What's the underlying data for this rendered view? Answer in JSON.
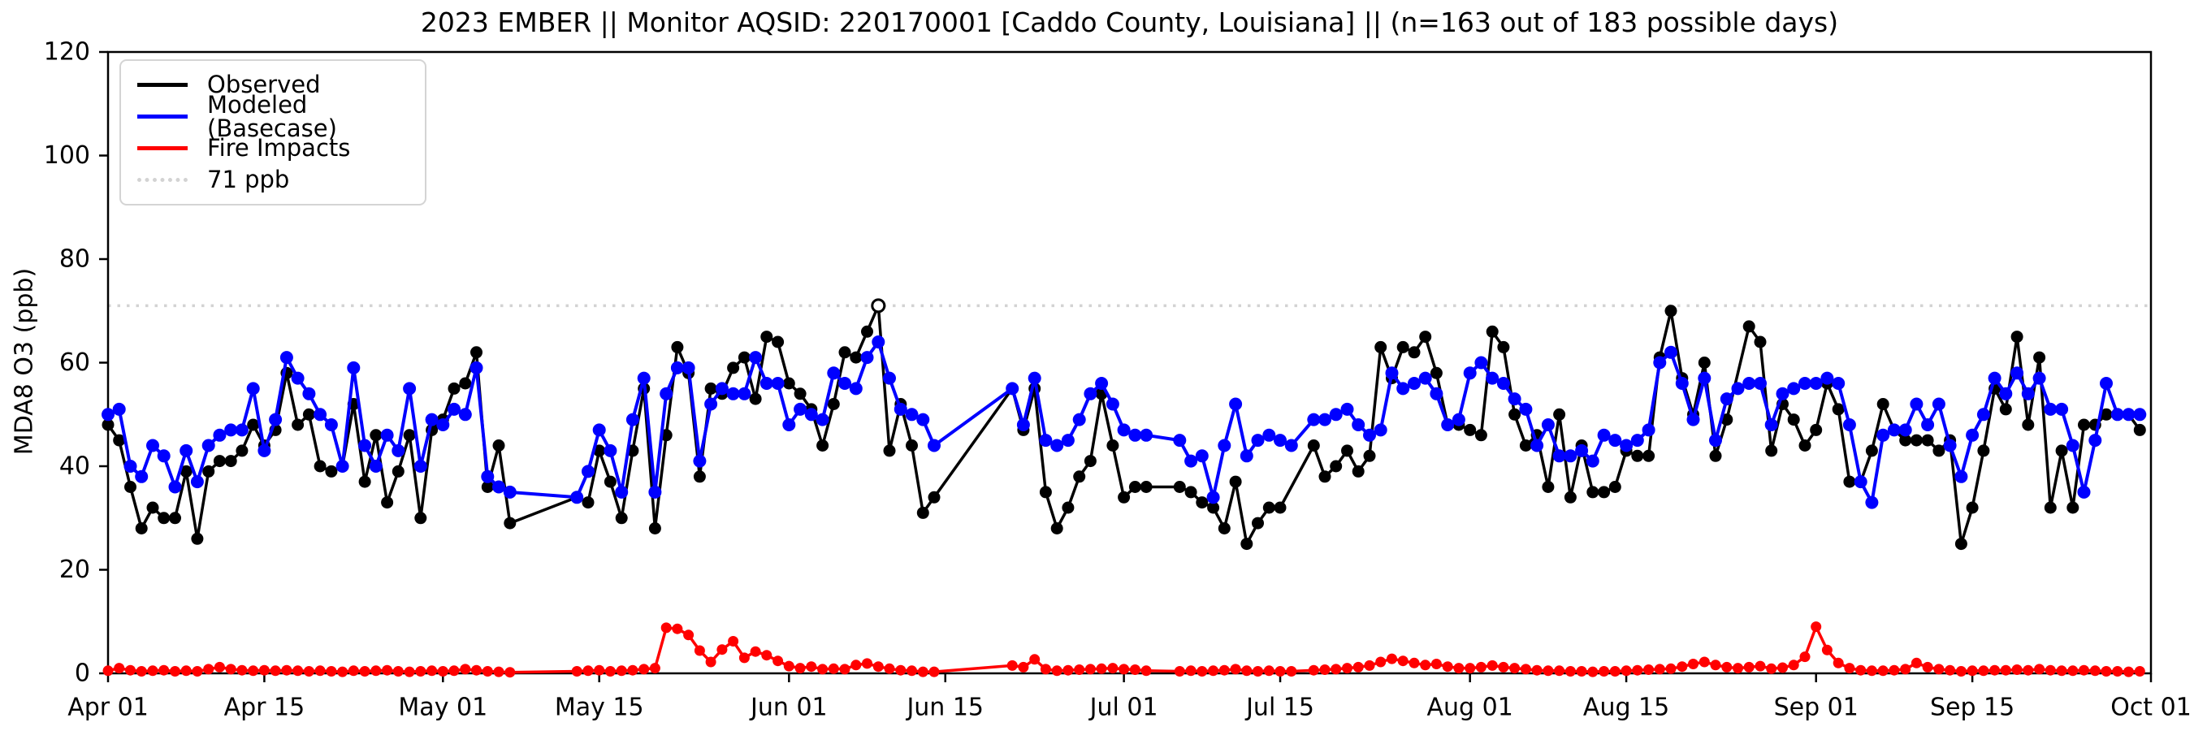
{
  "title": "2023 EMBER || Monitor AQSID: 220170001 [Caddo County, Louisiana] || (n=163 out of 183 possible days)",
  "axes": {
    "ylabel": "MDA8 O3 (ppb)",
    "y_ticks": [
      0,
      20,
      40,
      60,
      80,
      100,
      120
    ],
    "ylim": [
      0,
      120
    ],
    "x_tick_labels": [
      "Apr 01",
      "Apr 15",
      "May 01",
      "May 15",
      "Jun 01",
      "Jun 15",
      "Jul 01",
      "Jul 15",
      "Aug 01",
      "Aug 15",
      "Sep 01",
      "Sep 15",
      "Oct 01"
    ],
    "x_tick_day_offsets": [
      0,
      14,
      30,
      44,
      61,
      75,
      91,
      105,
      122,
      136,
      153,
      167,
      183
    ],
    "x_total_days": 183
  },
  "legend": {
    "items": [
      {
        "label": "Observed",
        "color": "#000000",
        "style": "solid"
      },
      {
        "label": "Modeled (Basecase)",
        "color": "#0000ff",
        "style": "solid"
      },
      {
        "label": "Fire Impacts",
        "color": "#ff0000",
        "style": "solid"
      },
      {
        "label": "71 ppb",
        "color": "#d3d3d3",
        "style": "dotted"
      }
    ]
  },
  "chart_data": {
    "type": "line",
    "title": "2023 EMBER || Monitor AQSID: 220170001 [Caddo County, Louisiana] || (n=163 out of 183 possible days)",
    "xlabel": "",
    "ylabel": "MDA8 O3 (ppb)",
    "ylim": [
      0,
      120
    ],
    "grid": false,
    "legend_position": "upper left",
    "threshold_line": {
      "label": "71 ppb",
      "value_ppb": 71,
      "color": "#d3d3d3",
      "style": "dotted"
    },
    "exceedance_threshold_ppb": 71,
    "days": [
      "Apr 01",
      "Apr 02",
      "Apr 03",
      "Apr 04",
      "Apr 05",
      "Apr 06",
      "Apr 07",
      "Apr 08",
      "Apr 09",
      "Apr 10",
      "Apr 11",
      "Apr 12",
      "Apr 13",
      "Apr 14",
      "Apr 15",
      "Apr 16",
      "Apr 17",
      "Apr 18",
      "Apr 19",
      "Apr 20",
      "Apr 21",
      "Apr 22",
      "Apr 23",
      "Apr 24",
      "Apr 25",
      "Apr 26",
      "Apr 27",
      "Apr 28",
      "Apr 29",
      "Apr 30",
      "May 01",
      "May 02",
      "May 03",
      "May 04",
      "May 05",
      "May 06",
      "May 07",
      "May 08",
      "May 09",
      "May 10",
      "May 11",
      "May 12",
      "May 13",
      "May 14",
      "May 15",
      "May 16",
      "May 17",
      "May 18",
      "May 19",
      "May 20",
      "May 21",
      "May 22",
      "May 23",
      "May 24",
      "May 25",
      "May 26",
      "May 27",
      "May 28",
      "May 29",
      "May 30",
      "May 31",
      "Jun 01",
      "Jun 02",
      "Jun 03",
      "Jun 04",
      "Jun 05",
      "Jun 06",
      "Jun 07",
      "Jun 08",
      "Jun 09",
      "Jun 10",
      "Jun 11",
      "Jun 12",
      "Jun 13",
      "Jun 14",
      "Jun 15",
      "Jun 16",
      "Jun 17",
      "Jun 18",
      "Jun 19",
      "Jun 20",
      "Jun 21",
      "Jun 22",
      "Jun 23",
      "Jun 24",
      "Jun 25",
      "Jun 26",
      "Jun 27",
      "Jun 28",
      "Jun 29",
      "Jun 30",
      "Jul 01",
      "Jul 02",
      "Jul 03",
      "Jul 04",
      "Jul 05",
      "Jul 06",
      "Jul 07",
      "Jul 08",
      "Jul 09",
      "Jul 10",
      "Jul 11",
      "Jul 12",
      "Jul 13",
      "Jul 14",
      "Jul 15",
      "Jul 16",
      "Jul 17",
      "Jul 18",
      "Jul 19",
      "Jul 20",
      "Jul 21",
      "Jul 22",
      "Jul 23",
      "Jul 24",
      "Jul 25",
      "Jul 26",
      "Jul 27",
      "Jul 28",
      "Jul 29",
      "Jul 30",
      "Jul 31",
      "Aug 01",
      "Aug 02",
      "Aug 03",
      "Aug 04",
      "Aug 05",
      "Aug 06",
      "Aug 07",
      "Aug 08",
      "Aug 09",
      "Aug 10",
      "Aug 11",
      "Aug 12",
      "Aug 13",
      "Aug 14",
      "Aug 15",
      "Aug 16",
      "Aug 17",
      "Aug 18",
      "Aug 19",
      "Aug 20",
      "Aug 21",
      "Aug 22",
      "Aug 23",
      "Aug 24",
      "Aug 25",
      "Aug 26",
      "Aug 27",
      "Aug 28",
      "Aug 29",
      "Aug 30",
      "Aug 31",
      "Sep 01",
      "Sep 02",
      "Sep 03",
      "Sep 04",
      "Sep 05",
      "Sep 06",
      "Sep 07",
      "Sep 08",
      "Sep 09",
      "Sep 10",
      "Sep 11",
      "Sep 12",
      "Sep 13",
      "Sep 14",
      "Sep 15",
      "Sep 16",
      "Sep 17",
      "Sep 18",
      "Sep 19",
      "Sep 20",
      "Sep 21",
      "Sep 22",
      "Sep 23",
      "Sep 24",
      "Sep 25",
      "Sep 26",
      "Sep 27",
      "Sep 28",
      "Sep 29",
      "Sep 30"
    ],
    "series": [
      {
        "name": "Observed",
        "color": "#000000",
        "values": [
          48,
          45,
          36,
          28,
          32,
          30,
          30,
          39,
          26,
          39,
          41,
          41,
          43,
          48,
          44,
          47,
          58,
          48,
          50,
          40,
          39,
          40,
          52,
          37,
          46,
          33,
          39,
          46,
          30,
          47,
          49,
          55,
          56,
          62,
          36,
          44,
          29,
          null,
          null,
          null,
          null,
          null,
          34,
          33,
          43,
          37,
          30,
          43,
          55,
          28,
          46,
          63,
          58,
          38,
          55,
          54,
          59,
          61,
          53,
          65,
          64,
          56,
          54,
          51,
          44,
          52,
          62,
          61,
          66,
          71,
          43,
          52,
          44,
          31,
          34,
          null,
          null,
          null,
          null,
          null,
          null,
          55,
          47,
          55,
          35,
          28,
          32,
          38,
          41,
          54,
          44,
          34,
          36,
          36,
          null,
          null,
          36,
          35,
          33,
          32,
          28,
          37,
          25,
          29,
          32,
          32,
          null,
          null,
          44,
          38,
          40,
          43,
          39,
          42,
          63,
          57,
          63,
          62,
          65,
          58,
          48,
          48,
          47,
          46,
          66,
          63,
          50,
          44,
          46,
          36,
          50,
          34,
          44,
          35,
          35,
          36,
          43,
          42,
          42,
          61,
          70,
          57,
          50,
          60,
          42,
          49,
          null,
          67,
          64,
          43,
          52,
          49,
          44,
          47,
          56,
          51,
          37,
          37,
          43,
          52,
          47,
          45,
          45,
          45,
          43,
          45,
          25,
          32,
          43,
          55,
          51,
          65,
          48,
          61,
          32,
          43,
          32,
          48,
          48,
          50,
          50,
          50,
          47
        ]
      },
      {
        "name": "Modeled (Basecase)",
        "color": "#0000ff",
        "values": [
          50,
          51,
          40,
          38,
          44,
          42,
          36,
          43,
          37,
          44,
          46,
          47,
          47,
          55,
          43,
          49,
          61,
          57,
          54,
          50,
          48,
          40,
          59,
          44,
          40,
          46,
          43,
          55,
          40,
          49,
          48,
          51,
          50,
          59,
          38,
          36,
          35,
          null,
          null,
          null,
          null,
          null,
          34,
          39,
          47,
          43,
          35,
          49,
          57,
          35,
          54,
          59,
          59,
          41,
          52,
          55,
          54,
          54,
          61,
          56,
          56,
          48,
          51,
          50,
          49,
          58,
          56,
          55,
          61,
          64,
          57,
          51,
          50,
          49,
          44,
          null,
          null,
          null,
          null,
          null,
          null,
          55,
          48,
          57,
          45,
          44,
          45,
          49,
          54,
          56,
          52,
          47,
          46,
          46,
          null,
          null,
          45,
          41,
          42,
          34,
          44,
          52,
          42,
          45,
          46,
          45,
          44,
          null,
          49,
          49,
          50,
          51,
          48,
          46,
          47,
          58,
          55,
          56,
          57,
          54,
          48,
          49,
          58,
          60,
          57,
          56,
          53,
          51,
          44,
          48,
          42,
          42,
          43,
          41,
          46,
          45,
          44,
          45,
          47,
          60,
          62,
          56,
          49,
          57,
          45,
          53,
          55,
          56,
          56,
          48,
          54,
          55,
          56,
          56,
          57,
          56,
          48,
          37,
          33,
          46,
          47,
          47,
          52,
          48,
          52,
          44,
          38,
          46,
          50,
          57,
          54,
          58,
          54,
          57,
          51,
          51,
          44,
          35,
          45,
          56,
          50,
          50,
          50
        ]
      },
      {
        "name": "Fire Impacts",
        "color": "#ff0000",
        "values": [
          0.5,
          1.0,
          0.6,
          0.4,
          0.5,
          0.6,
          0.4,
          0.5,
          0.4,
          0.8,
          1.2,
          0.8,
          0.6,
          0.5,
          0.6,
          0.5,
          0.6,
          0.5,
          0.4,
          0.5,
          0.4,
          0.3,
          0.5,
          0.4,
          0.5,
          0.6,
          0.4,
          0.3,
          0.4,
          0.5,
          0.4,
          0.5,
          0.8,
          0.6,
          0.4,
          0.3,
          0.2,
          null,
          null,
          null,
          null,
          null,
          0.4,
          0.5,
          0.6,
          0.4,
          0.5,
          0.6,
          0.8,
          1.0,
          8.8,
          8.6,
          7.4,
          4.4,
          2.2,
          4.6,
          6.2,
          3.0,
          4.2,
          3.5,
          2.4,
          1.4,
          1.0,
          1.3,
          0.8,
          0.9,
          0.8,
          1.6,
          1.9,
          1.3,
          0.9,
          0.6,
          0.5,
          0.3,
          0.3,
          null,
          null,
          null,
          null,
          null,
          null,
          1.5,
          1.2,
          2.7,
          0.8,
          0.5,
          0.6,
          0.7,
          0.8,
          0.9,
          1.0,
          0.8,
          0.7,
          0.5,
          null,
          null,
          0.4,
          0.5,
          0.4,
          0.5,
          0.6,
          0.8,
          0.5,
          0.4,
          0.5,
          0.4,
          0.4,
          null,
          0.6,
          0.7,
          0.8,
          1.0,
          1.2,
          1.5,
          2.2,
          2.8,
          2.4,
          2.0,
          1.6,
          1.8,
          1.3,
          1.0,
          1.0,
          1.2,
          1.5,
          1.2,
          1.0,
          0.8,
          0.6,
          0.5,
          0.5,
          0.4,
          0.4,
          0.3,
          0.4,
          0.4,
          0.5,
          0.6,
          0.7,
          0.8,
          0.9,
          1.3,
          1.8,
          2.2,
          1.6,
          1.2,
          1.0,
          1.2,
          1.4,
          0.9,
          1.1,
          1.6,
          3.2,
          9.0,
          4.5,
          2.0,
          1.0,
          0.6,
          0.5,
          0.5,
          0.6,
          0.8,
          2.0,
          1.2,
          0.8,
          0.6,
          0.4,
          0.5,
          0.5,
          0.6,
          0.6,
          0.7,
          0.6,
          0.8,
          0.6,
          0.5,
          0.5,
          0.6,
          0.5,
          0.4,
          0.4,
          0.3,
          0.4
        ]
      }
    ]
  }
}
